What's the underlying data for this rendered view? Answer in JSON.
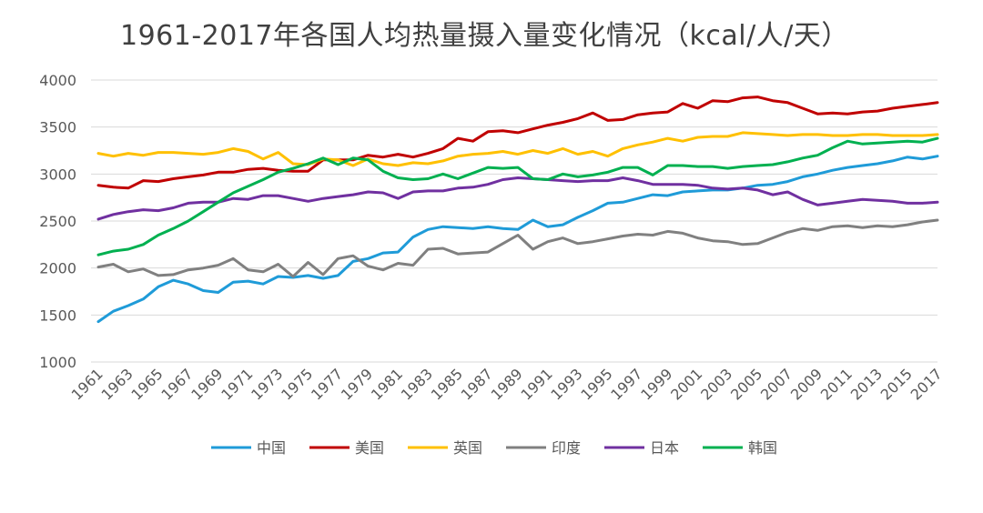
{
  "chart_data": {
    "type": "line",
    "title": "1961-2017年各国人均热量摄入量变化情况（kcal/人/天）",
    "xlabel": "",
    "ylabel": "",
    "ylim": [
      1000,
      4000
    ],
    "yticks": [
      1000,
      1500,
      2000,
      2500,
      3000,
      3500,
      4000
    ],
    "grid": true,
    "legend_position": "bottom",
    "x": [
      1961,
      1962,
      1963,
      1964,
      1965,
      1966,
      1967,
      1968,
      1969,
      1970,
      1971,
      1972,
      1973,
      1974,
      1975,
      1976,
      1977,
      1978,
      1979,
      1980,
      1981,
      1982,
      1983,
      1984,
      1985,
      1986,
      1987,
      1988,
      1989,
      1990,
      1991,
      1992,
      1993,
      1994,
      1995,
      1996,
      1997,
      1998,
      1999,
      2000,
      2001,
      2002,
      2003,
      2004,
      2005,
      2006,
      2007,
      2008,
      2009,
      2010,
      2011,
      2012,
      2013,
      2014,
      2015,
      2016,
      2017
    ],
    "xtick_labels": [
      "1961",
      "1963",
      "1965",
      "1967",
      "1969",
      "1971",
      "1973",
      "1975",
      "1977",
      "1979",
      "1981",
      "1983",
      "1985",
      "1987",
      "1989",
      "1991",
      "1993",
      "1995",
      "1997",
      "1999",
      "2001",
      "2003",
      "2005",
      "2007",
      "2009",
      "2011",
      "2013",
      "2015",
      "2017"
    ],
    "series": [
      {
        "name": "中国",
        "color": "#1f9bd8",
        "values": [
          1430,
          1540,
          1600,
          1670,
          1800,
          1870,
          1830,
          1760,
          1740,
          1850,
          1860,
          1830,
          1910,
          1900,
          1920,
          1890,
          1920,
          2070,
          2100,
          2160,
          2170,
          2330,
          2410,
          2440,
          2430,
          2420,
          2440,
          2420,
          2410,
          2510,
          2440,
          2460,
          2540,
          2610,
          2690,
          2700,
          2740,
          2780,
          2770,
          2810,
          2820,
          2830,
          2830,
          2850,
          2880,
          2890,
          2920,
          2970,
          3000,
          3040,
          3070,
          3090,
          3110,
          3140,
          3180,
          3160,
          3190
        ]
      },
      {
        "name": "美国",
        "color": "#c00000",
        "values": [
          2880,
          2860,
          2850,
          2930,
          2920,
          2950,
          2970,
          2990,
          3020,
          3020,
          3050,
          3060,
          3040,
          3030,
          3030,
          3150,
          3150,
          3150,
          3200,
          3180,
          3210,
          3180,
          3220,
          3270,
          3380,
          3350,
          3450,
          3460,
          3440,
          3480,
          3520,
          3550,
          3590,
          3650,
          3570,
          3580,
          3630,
          3650,
          3660,
          3750,
          3700,
          3780,
          3770,
          3810,
          3820,
          3780,
          3760,
          3700,
          3640,
          3650,
          3640,
          3660,
          3670,
          3700,
          3720,
          3740,
          3760
        ]
      },
      {
        "name": "英国",
        "color": "#ffc000",
        "values": [
          3220,
          3190,
          3220,
          3200,
          3230,
          3230,
          3220,
          3210,
          3230,
          3270,
          3240,
          3160,
          3230,
          3110,
          3100,
          3160,
          3150,
          3090,
          3160,
          3110,
          3090,
          3120,
          3110,
          3140,
          3190,
          3210,
          3220,
          3240,
          3210,
          3250,
          3220,
          3270,
          3210,
          3240,
          3190,
          3270,
          3310,
          3340,
          3380,
          3350,
          3390,
          3400,
          3400,
          3440,
          3430,
          3420,
          3410,
          3420,
          3420,
          3410,
          3410,
          3420,
          3420,
          3410,
          3410,
          3410,
          3420
        ]
      },
      {
        "name": "印度",
        "color": "#808080",
        "values": [
          2010,
          2040,
          1960,
          1990,
          1920,
          1930,
          1980,
          2000,
          2030,
          2100,
          1980,
          1960,
          2040,
          1910,
          2060,
          1930,
          2100,
          2130,
          2020,
          1980,
          2050,
          2030,
          2200,
          2210,
          2150,
          2160,
          2170,
          2260,
          2350,
          2200,
          2280,
          2320,
          2260,
          2280,
          2310,
          2340,
          2360,
          2350,
          2390,
          2370,
          2320,
          2290,
          2280,
          2250,
          2260,
          2320,
          2380,
          2420,
          2400,
          2440,
          2450,
          2430,
          2450,
          2440,
          2460,
          2490,
          2510
        ]
      },
      {
        "name": "日本",
        "color": "#7030a0",
        "values": [
          2520,
          2570,
          2600,
          2620,
          2610,
          2640,
          2690,
          2700,
          2700,
          2740,
          2730,
          2770,
          2770,
          2740,
          2710,
          2740,
          2760,
          2780,
          2810,
          2800,
          2740,
          2810,
          2820,
          2820,
          2850,
          2860,
          2890,
          2940,
          2960,
          2950,
          2940,
          2930,
          2920,
          2930,
          2930,
          2960,
          2930,
          2890,
          2890,
          2890,
          2880,
          2850,
          2840,
          2850,
          2830,
          2780,
          2810,
          2730,
          2670,
          2690,
          2710,
          2730,
          2720,
          2710,
          2690,
          2690,
          2700
        ]
      },
      {
        "name": "韩国",
        "color": "#00b050",
        "values": [
          2140,
          2180,
          2200,
          2250,
          2350,
          2420,
          2500,
          2600,
          2700,
          2800,
          2870,
          2940,
          3020,
          3060,
          3110,
          3170,
          3100,
          3170,
          3150,
          3030,
          2960,
          2940,
          2950,
          3000,
          2950,
          3010,
          3070,
          3060,
          3070,
          2950,
          2940,
          3000,
          2970,
          2990,
          3020,
          3070,
          3070,
          2990,
          3090,
          3090,
          3080,
          3080,
          3060,
          3080,
          3090,
          3100,
          3130,
          3170,
          3200,
          3280,
          3350,
          3320,
          3330,
          3340,
          3350,
          3340,
          3380
        ]
      }
    ]
  }
}
